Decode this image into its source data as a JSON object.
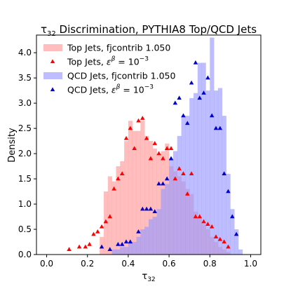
{
  "chart_data": {
    "type": "bar",
    "title_main": "τ",
    "title_sub": "32",
    "title_rest": " Discrimination, PYTHIA8 Top/QCD Jets",
    "xlabel_main": "τ",
    "xlabel_sub": "32",
    "ylabel": "Density",
    "xlim": [
      -0.05,
      1.05
    ],
    "ylim": [
      0,
      4.35
    ],
    "xticks": [
      0.0,
      0.2,
      0.4,
      0.6,
      0.8,
      1.0
    ],
    "xtick_labels": [
      "0.0",
      "0.2",
      "0.4",
      "0.6",
      "0.8",
      "1.0"
    ],
    "yticks": [
      0.0,
      0.5,
      1.0,
      1.5,
      2.0,
      2.5,
      3.0,
      3.5,
      4.0
    ],
    "ytick_labels": [
      "0.0",
      "0.5",
      "1.0",
      "1.5",
      "2.0",
      "2.5",
      "3.0",
      "3.5",
      "4.0"
    ],
    "bin_edges": [
      0.0,
      0.02,
      0.04,
      0.06,
      0.08,
      0.1,
      0.12,
      0.14,
      0.16,
      0.18,
      0.2,
      0.22,
      0.24,
      0.26,
      0.28,
      0.3,
      0.32,
      0.34,
      0.36,
      0.38,
      0.4,
      0.42,
      0.44,
      0.46,
      0.48,
      0.5,
      0.52,
      0.54,
      0.56,
      0.58,
      0.6,
      0.62,
      0.64,
      0.66,
      0.68,
      0.7,
      0.72,
      0.74,
      0.76,
      0.78,
      0.8,
      0.82,
      0.84,
      0.86,
      0.88,
      0.9,
      0.92,
      0.94,
      0.96,
      0.98,
      1.0
    ],
    "series": [
      {
        "name": "Top Jets, fjcontrib 1.050",
        "kind": "hist",
        "color": "#ff9999",
        "alpha": 0.65,
        "values": [
          0,
          0,
          0,
          0,
          0,
          0,
          0,
          0,
          0,
          0,
          0,
          0,
          0,
          0.35,
          1.25,
          1.55,
          1.45,
          1.75,
          1.85,
          2.25,
          2.65,
          2.45,
          2.45,
          2.65,
          2.35,
          2.25,
          2.1,
          2.0,
          2.05,
          2.2,
          1.75,
          1.65,
          1.55,
          1.45,
          1.3,
          1.2,
          0.85,
          0.75,
          0.6,
          0.5,
          0.35,
          0.25,
          0.15,
          0.1,
          0.05,
          0,
          0,
          0,
          0,
          0
        ]
      },
      {
        "name": "QCD Jets, fjcontrib 1.050",
        "kind": "hist",
        "color": "#9999ff",
        "alpha": 0.65,
        "values": [
          0,
          0,
          0,
          0,
          0,
          0,
          0,
          0,
          0,
          0,
          0,
          0,
          0,
          0,
          0,
          0,
          0.1,
          0.1,
          0.15,
          0.15,
          0.25,
          0.25,
          0.35,
          0.5,
          0.55,
          0.7,
          0.75,
          0.9,
          1.3,
          1.4,
          1.9,
          2.05,
          2.35,
          2.75,
          2.75,
          3.1,
          3.2,
          3.8,
          3.8,
          3.25,
          4.3,
          3.25,
          3.3,
          2.75,
          1.6,
          0.9,
          0.5,
          0.1,
          0,
          0
        ]
      },
      {
        "name": "Top Jets, ε^β = 10^-3",
        "kind": "markers",
        "color": "#ff0000",
        "x": [
          0.11,
          0.16,
          0.19,
          0.21,
          0.23,
          0.25,
          0.27,
          0.29,
          0.31,
          0.33,
          0.35,
          0.37,
          0.39,
          0.41,
          0.43,
          0.45,
          0.47,
          0.49,
          0.51,
          0.53,
          0.55,
          0.57,
          0.59,
          0.61,
          0.63,
          0.65,
          0.67,
          0.69,
          0.71,
          0.73,
          0.75,
          0.77,
          0.79,
          0.81,
          0.83,
          0.85,
          0.87,
          0.89
        ],
        "y": [
          0.1,
          0.15,
          0.15,
          0.2,
          0.4,
          0.45,
          0.55,
          0.65,
          0.75,
          1.3,
          1.5,
          1.6,
          2.3,
          2.5,
          2.1,
          2.65,
          2.7,
          2.3,
          1.9,
          2.2,
          2.0,
          1.9,
          2.1,
          2.1,
          1.5,
          1.7,
          1.6,
          1.2,
          1.6,
          0.75,
          0.75,
          0.65,
          0.6,
          0.55,
          0.35,
          0.3,
          0.25,
          0.15
        ]
      },
      {
        "name": "QCD Jets, ε^β = 10^-3",
        "kind": "markers",
        "color": "#0000cc",
        "x": [
          0.27,
          0.31,
          0.35,
          0.37,
          0.39,
          0.41,
          0.45,
          0.47,
          0.49,
          0.51,
          0.53,
          0.55,
          0.57,
          0.59,
          0.61,
          0.63,
          0.65,
          0.67,
          0.69,
          0.71,
          0.73,
          0.75,
          0.77,
          0.79,
          0.81,
          0.83,
          0.85,
          0.87,
          0.89,
          0.91,
          0.93
        ],
        "y": [
          0.15,
          0.1,
          0.2,
          0.2,
          0.25,
          0.25,
          0.45,
          0.9,
          0.9,
          0.9,
          0.85,
          1.4,
          1.4,
          1.5,
          1.9,
          3.0,
          3.1,
          2.75,
          2.6,
          3.4,
          3.8,
          3.1,
          3.2,
          3.5,
          2.75,
          2.5,
          2.5,
          1.6,
          1.25,
          0.75,
          0.4
        ]
      }
    ],
    "legend": {
      "placement": "upper-left",
      "entries": [
        {
          "label_main": "Top Jets, fjcontrib 1.050",
          "kind": "hist",
          "color": "#ff9999"
        },
        {
          "label_main": "Top Jets, ",
          "label_sym": "ε",
          "label_sup": "β",
          "label_rest": " = 10",
          "label_exp": "−3",
          "kind": "markers",
          "color": "#ff0000"
        },
        {
          "label_main": "QCD Jets, fjcontrib 1.050",
          "kind": "hist",
          "color": "#9999ff"
        },
        {
          "label_main": "QCD Jets, ",
          "label_sym": "ε",
          "label_sup": "β",
          "label_rest": " = 10",
          "label_exp": "−3",
          "kind": "markers",
          "color": "#0000cc"
        }
      ]
    },
    "grid": false
  }
}
